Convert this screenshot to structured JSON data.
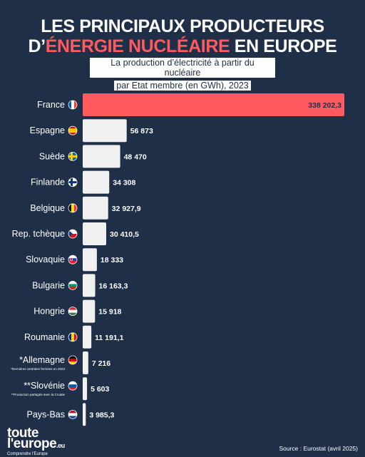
{
  "header": {
    "title_line1": "LES PRINCIPAUX PRODUCTEURS",
    "title_line2_prefix": "D’",
    "title_line2_accent": "ÉNERGIE NUCLÉAIRE",
    "title_line2_suffix": " EN EUROPE",
    "subtitle_line1": "La production d’électricité à partir du nucléaire",
    "subtitle_line2": "par Etat membre (en GWh), 2023"
  },
  "colors": {
    "background": "#1f2f47",
    "highlight_bar": "#ff5a5f",
    "bar": "#f0f0f0",
    "accent_text": "#ff5a5f"
  },
  "chart_data": {
    "type": "bar",
    "orientation": "horizontal",
    "unit": "GWh",
    "categories": [
      "France",
      "Espagne",
      "Suède",
      "Finlande",
      "Belgique",
      "Rep. tchèque",
      "Slovaquie",
      "Bulgarie",
      "Hongrie",
      "Roumanie",
      "*Allemagne",
      "**Slovénie",
      "Pays-Bas"
    ],
    "values": [
      338202.3,
      56873,
      48470,
      34308,
      32927.9,
      30410.5,
      18333,
      16163.3,
      15918,
      11191.1,
      7216,
      5603,
      3985.3
    ],
    "value_labels": [
      "338 202,3",
      "56 873",
      "48 470",
      "34 308",
      "32 927,9",
      "30 410,5",
      "18 333",
      "16 163,3",
      "15 918",
      "11 191,1",
      "7 216",
      "5 603",
      "3 985,3"
    ],
    "flags": [
      "france-flag-icon",
      "spain-flag-icon",
      "sweden-flag-icon",
      "finland-flag-icon",
      "belgium-flag-icon",
      "czech-flag-icon",
      "slovakia-flag-icon",
      "bulgaria-flag-icon",
      "hungary-flag-icon",
      "romania-flag-icon",
      "germany-flag-icon",
      "slovenia-flag-icon",
      "netherlands-flag-icon"
    ],
    "notes": [
      "",
      "",
      "",
      "",
      "",
      "",
      "",
      "",
      "",
      "",
      "*Dernières centrales fermées en 2023",
      "**Production partagée avec la Croatie",
      ""
    ],
    "highlight_index": 0,
    "xlim": [
      0,
      338202.3
    ]
  },
  "footer": {
    "logo_line1": "toute",
    "logo_line2": "l'europe",
    "logo_suffix": ".eu",
    "logo_tagline": "Comprendre l'Europe",
    "source": "Source : Eurostat (avril 2025)"
  }
}
